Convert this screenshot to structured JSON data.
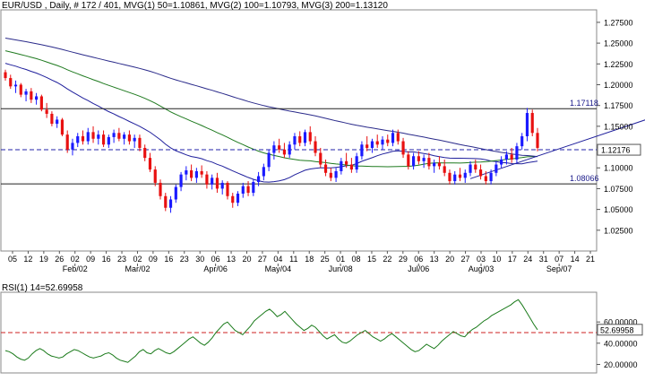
{
  "header": {
    "text": "EUR/USD , Daily, # 172 / 401, MVG(1) 50=1.10861, MVG(2) 100=1.10793, MVG(3) 200=1.13120"
  },
  "rsi_header": {
    "text": "RSI(1) 14=52.69958"
  },
  "colors": {
    "up": "#1a1aff",
    "down": "#e81010",
    "mvg50": "#1f1f9c",
    "mvg100": "#1f7a1f",
    "mvg200": "#2a2a8a",
    "trend": "#1f1f9c",
    "hline": "#222222",
    "dash": "#2222aa",
    "rsi_line": "#1a7a1a",
    "rsi_dash": "#cc2222",
    "grid_bg": "#ffffff",
    "frame": "#888888"
  },
  "chart_data": {
    "type": "candlestick",
    "symbol": "EUR/USD",
    "timeframe": "Daily",
    "price_axis": {
      "range": [
        1.0,
        1.29
      ],
      "ticks": [
        "1.27500",
        "1.25000",
        "1.22500",
        "1.20000",
        "1.17500",
        "1.15000",
        "1.12500",
        "1.10000",
        "1.07500",
        "1.05000",
        "1.02500"
      ]
    },
    "date_axis": {
      "day_labels": [
        "05",
        "12",
        "19",
        "26",
        "02",
        "09",
        "16",
        "23",
        "02",
        "09",
        "16",
        "23",
        "30",
        "06",
        "13",
        "20",
        "27",
        "04",
        "11",
        "18",
        "25",
        "01",
        "08",
        "15",
        "22",
        "29",
        "06",
        "13",
        "20",
        "27",
        "03",
        "10",
        "17",
        "24",
        "31",
        "07",
        "14",
        "21"
      ],
      "month_labels": [
        "Feb/02",
        "Mar/02",
        "Apr/06",
        "May/04",
        "Jun/08",
        "Jul/06",
        "Aug/03",
        "Sep/07"
      ]
    },
    "horizontal_levels": [
      {
        "value": 1.17118,
        "label": "1.17118",
        "style": "solid"
      },
      {
        "value": 1.08066,
        "label": "1.08066",
        "style": "solid"
      },
      {
        "value": 1.12176,
        "label": "1.12176",
        "style": "dashed"
      }
    ],
    "moving_averages": [
      {
        "name": "MVG(1) 50",
        "last": 1.10861
      },
      {
        "name": "MVG(2) 100",
        "last": 1.10793
      },
      {
        "name": "MVG(3) 200",
        "last": 1.1312
      }
    ],
    "candles": [
      [
        1.215,
        1.218,
        1.205,
        1.208
      ],
      [
        1.208,
        1.212,
        1.195,
        1.198
      ],
      [
        1.198,
        1.205,
        1.19,
        1.2
      ],
      [
        1.2,
        1.202,
        1.185,
        1.188
      ],
      [
        1.188,
        1.195,
        1.18,
        1.192
      ],
      [
        1.192,
        1.196,
        1.178,
        1.182
      ],
      [
        1.182,
        1.19,
        1.176,
        1.186
      ],
      [
        1.186,
        1.188,
        1.168,
        1.17
      ],
      [
        1.17,
        1.178,
        1.16,
        1.165
      ],
      [
        1.165,
        1.168,
        1.15,
        1.153
      ],
      [
        1.153,
        1.162,
        1.148,
        1.158
      ],
      [
        1.158,
        1.16,
        1.138,
        1.14
      ],
      [
        1.14,
        1.145,
        1.118,
        1.122
      ],
      [
        1.122,
        1.135,
        1.115,
        1.13
      ],
      [
        1.13,
        1.142,
        1.125,
        1.138
      ],
      [
        1.138,
        1.145,
        1.128,
        1.132
      ],
      [
        1.132,
        1.148,
        1.128,
        1.143
      ],
      [
        1.143,
        1.15,
        1.13,
        1.135
      ],
      [
        1.135,
        1.145,
        1.128,
        1.14
      ],
      [
        1.14,
        1.145,
        1.125,
        1.128
      ],
      [
        1.128,
        1.14,
        1.124,
        1.137
      ],
      [
        1.137,
        1.146,
        1.13,
        1.142
      ],
      [
        1.142,
        1.148,
        1.132,
        1.135
      ],
      [
        1.135,
        1.143,
        1.128,
        1.14
      ],
      [
        1.14,
        1.145,
        1.128,
        1.132
      ],
      [
        1.132,
        1.14,
        1.124,
        1.136
      ],
      [
        1.136,
        1.14,
        1.12,
        1.124
      ],
      [
        1.124,
        1.128,
        1.108,
        1.112
      ],
      [
        1.112,
        1.118,
        1.095,
        1.098
      ],
      [
        1.098,
        1.102,
        1.078,
        1.082
      ],
      [
        1.082,
        1.086,
        1.062,
        1.066
      ],
      [
        1.066,
        1.07,
        1.048,
        1.052
      ],
      [
        1.052,
        1.066,
        1.046,
        1.062
      ],
      [
        1.062,
        1.08,
        1.058,
        1.077
      ],
      [
        1.077,
        1.095,
        1.072,
        1.092
      ],
      [
        1.092,
        1.102,
        1.085,
        1.097
      ],
      [
        1.097,
        1.104,
        1.084,
        1.088
      ],
      [
        1.088,
        1.1,
        1.082,
        1.096
      ],
      [
        1.096,
        1.103,
        1.088,
        1.092
      ],
      [
        1.092,
        1.096,
        1.075,
        1.08
      ],
      [
        1.08,
        1.092,
        1.074,
        1.088
      ],
      [
        1.088,
        1.094,
        1.07,
        1.075
      ],
      [
        1.075,
        1.085,
        1.068,
        1.082
      ],
      [
        1.082,
        1.084,
        1.062,
        1.066
      ],
      [
        1.066,
        1.07,
        1.052,
        1.058
      ],
      [
        1.058,
        1.072,
        1.054,
        1.069
      ],
      [
        1.069,
        1.082,
        1.064,
        1.078
      ],
      [
        1.078,
        1.084,
        1.066,
        1.07
      ],
      [
        1.07,
        1.086,
        1.066,
        1.083
      ],
      [
        1.083,
        1.095,
        1.078,
        1.09
      ],
      [
        1.09,
        1.105,
        1.085,
        1.101
      ],
      [
        1.101,
        1.122,
        1.096,
        1.118
      ],
      [
        1.118,
        1.132,
        1.11,
        1.127
      ],
      [
        1.127,
        1.135,
        1.118,
        1.122
      ],
      [
        1.122,
        1.13,
        1.112,
        1.116
      ],
      [
        1.116,
        1.132,
        1.112,
        1.128
      ],
      [
        1.128,
        1.142,
        1.122,
        1.138
      ],
      [
        1.138,
        1.144,
        1.126,
        1.13
      ],
      [
        1.13,
        1.146,
        1.126,
        1.143
      ],
      [
        1.143,
        1.15,
        1.128,
        1.132
      ],
      [
        1.132,
        1.138,
        1.114,
        1.118
      ],
      [
        1.118,
        1.124,
        1.1,
        1.104
      ],
      [
        1.104,
        1.11,
        1.09,
        1.094
      ],
      [
        1.094,
        1.1,
        1.084,
        1.088
      ],
      [
        1.088,
        1.1,
        1.083,
        1.096
      ],
      [
        1.096,
        1.112,
        1.092,
        1.108
      ],
      [
        1.108,
        1.118,
        1.1,
        1.104
      ],
      [
        1.104,
        1.112,
        1.094,
        1.098
      ],
      [
        1.098,
        1.118,
        1.094,
        1.114
      ],
      [
        1.114,
        1.132,
        1.11,
        1.128
      ],
      [
        1.128,
        1.138,
        1.12,
        1.124
      ],
      [
        1.124,
        1.135,
        1.118,
        1.132
      ],
      [
        1.132,
        1.14,
        1.124,
        1.128
      ],
      [
        1.128,
        1.138,
        1.122,
        1.134
      ],
      [
        1.134,
        1.14,
        1.126,
        1.13
      ],
      [
        1.13,
        1.146,
        1.126,
        1.142
      ],
      [
        1.142,
        1.146,
        1.128,
        1.132
      ],
      [
        1.132,
        1.136,
        1.112,
        1.116
      ],
      [
        1.116,
        1.12,
        1.098,
        1.102
      ],
      [
        1.102,
        1.118,
        1.098,
        1.114
      ],
      [
        1.114,
        1.12,
        1.104,
        1.108
      ],
      [
        1.108,
        1.116,
        1.1,
        1.112
      ],
      [
        1.112,
        1.118,
        1.098,
        1.102
      ],
      [
        1.102,
        1.11,
        1.094,
        1.106
      ],
      [
        1.106,
        1.114,
        1.098,
        1.102
      ],
      [
        1.102,
        1.11,
        1.09,
        1.094
      ],
      [
        1.094,
        1.098,
        1.08,
        1.084
      ],
      [
        1.084,
        1.096,
        1.08,
        1.092
      ],
      [
        1.092,
        1.1,
        1.084,
        1.088
      ],
      [
        1.088,
        1.098,
        1.082,
        1.094
      ],
      [
        1.094,
        1.108,
        1.09,
        1.104
      ],
      [
        1.104,
        1.11,
        1.094,
        1.098
      ],
      [
        1.098,
        1.104,
        1.086,
        1.09
      ],
      [
        1.09,
        1.096,
        1.08,
        1.084
      ],
      [
        1.084,
        1.098,
        1.08,
        1.094
      ],
      [
        1.094,
        1.108,
        1.09,
        1.104
      ],
      [
        1.104,
        1.114,
        1.1,
        1.11
      ],
      [
        1.11,
        1.12,
        1.104,
        1.116
      ],
      [
        1.116,
        1.124,
        1.106,
        1.11
      ],
      [
        1.11,
        1.13,
        1.106,
        1.126
      ],
      [
        1.126,
        1.142,
        1.122,
        1.138
      ],
      [
        1.138,
        1.172,
        1.132,
        1.166
      ],
      [
        1.166,
        1.17,
        1.138,
        1.142
      ],
      [
        1.142,
        1.148,
        1.12,
        1.124
      ]
    ]
  },
  "rsi_data": {
    "type": "line",
    "range": [
      0,
      100
    ],
    "ticks": [
      "60.00000",
      "40.00000",
      "20.00000"
    ],
    "tick_values": [
      60,
      40,
      20
    ],
    "last": 52.69958,
    "last_label": "52.69958",
    "values": [
      33,
      32,
      30,
      27,
      25,
      24,
      26,
      30,
      33,
      35,
      33,
      30,
      28,
      27,
      26,
      27,
      30,
      32,
      34,
      33,
      31,
      29,
      27,
      26,
      27,
      28,
      30,
      31,
      29,
      26,
      24,
      23,
      22,
      25,
      28,
      32,
      34,
      31,
      30,
      33,
      35,
      33,
      31,
      30,
      32,
      35,
      38,
      41,
      44,
      46,
      43,
      40,
      38,
      41,
      45,
      50,
      54,
      58,
      60,
      56,
      52,
      50,
      48,
      52,
      56,
      61,
      64,
      67,
      70,
      72,
      69,
      65,
      67,
      70,
      66,
      62,
      58,
      55,
      52,
      54,
      57,
      55,
      51,
      47,
      44,
      46,
      48,
      44,
      41,
      40,
      42,
      45,
      48,
      50,
      52,
      49,
      46,
      44,
      42,
      44,
      47,
      49,
      46,
      43,
      40,
      37,
      34,
      32,
      33,
      36,
      39,
      37,
      35,
      38,
      42,
      45,
      48,
      51,
      49,
      47,
      46,
      50,
      53,
      55,
      58,
      61,
      63,
      66,
      68,
      70,
      72,
      74,
      76,
      79,
      81,
      76,
      70,
      64,
      58,
      52.7
    ]
  }
}
